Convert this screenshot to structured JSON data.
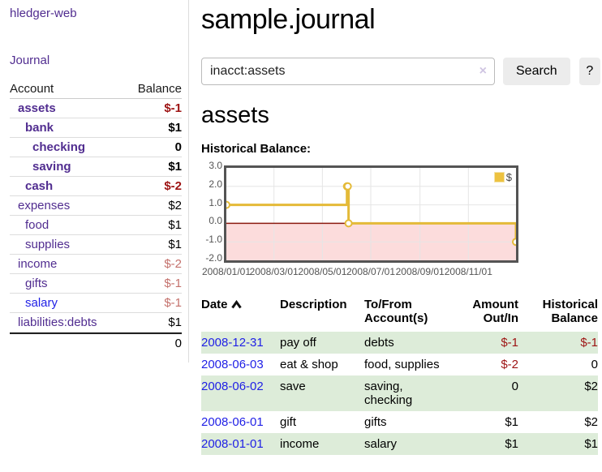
{
  "sidebar": {
    "app_title": "hledger-web",
    "journal_link": "Journal",
    "accounts_header": {
      "account": "Account",
      "balance": "Balance"
    },
    "accounts": [
      {
        "name": "assets",
        "balance": "$-1"
      },
      {
        "name": "bank",
        "balance": "$1"
      },
      {
        "name": "checking",
        "balance": "0"
      },
      {
        "name": "saving",
        "balance": "$1"
      },
      {
        "name": "cash",
        "balance": "$-2"
      },
      {
        "name": "expenses",
        "balance": "$2"
      },
      {
        "name": "food",
        "balance": "$1"
      },
      {
        "name": "supplies",
        "balance": "$1"
      },
      {
        "name": "income",
        "balance": "$-2"
      },
      {
        "name": "gifts",
        "balance": "$-1"
      },
      {
        "name": "salary",
        "balance": "$-1"
      },
      {
        "name": "liabilities:debts",
        "balance": "$1"
      }
    ],
    "accounts_total": "0"
  },
  "header": {
    "title": "sample.journal"
  },
  "search": {
    "value": "inacct:assets",
    "clear_icon": "×",
    "button_label": "Search",
    "help_label": "?"
  },
  "account_page": {
    "title": "assets",
    "chart_label": "Historical Balance:"
  },
  "chart_data": {
    "type": "line",
    "style": "step",
    "title": "Historical Balance",
    "series": [
      {
        "name": "$",
        "color": "#edc240",
        "points": [
          [
            "2008-01-01",
            1
          ],
          [
            "2008-06-01",
            2
          ],
          [
            "2008-06-02",
            2
          ],
          [
            "2008-06-03",
            0
          ],
          [
            "2008-12-31",
            -1
          ]
        ]
      }
    ],
    "xrange": [
      "2008-01-01",
      "2008-12-31"
    ],
    "ylim": [
      -2,
      3
    ],
    "yticks": [
      "3.0",
      "2.0",
      "1.0",
      "0.0",
      "-1.0",
      "-2.0"
    ],
    "xticks": [
      {
        "label": "2008/01/01",
        "date": "2008-01-01"
      },
      {
        "label": "2008/03/01",
        "date": "2008-03-01"
      },
      {
        "label": "2008/05/01",
        "date": "2008-05-01"
      },
      {
        "label": "2008/07/01",
        "date": "2008-07-01"
      },
      {
        "label": "2008/09/01",
        "date": "2008-09-01"
      },
      {
        "label": "2008/11/01",
        "date": "2008-11-01"
      }
    ],
    "grid": true,
    "legend_position": "top-right",
    "negative_region_color": "#fcdcdc",
    "zero_line_color": "#8b1a10",
    "line_color": "#e4ba38",
    "grid_color": "#e5e5e5"
  },
  "register_table": {
    "headers": {
      "date": "Date",
      "description": "Description",
      "to_from": "To/From Account(s)",
      "amount": "Amount Out/In",
      "balance": "Historical Balance"
    },
    "rows": [
      {
        "date": "2008-12-31",
        "description": "pay off",
        "to_from": "debts",
        "amount": "$-1",
        "balance": "$-1"
      },
      {
        "date": "2008-06-03",
        "description": "eat & shop",
        "to_from": "food, supplies",
        "amount": "$-2",
        "balance": "0"
      },
      {
        "date": "2008-06-02",
        "description": "save",
        "to_from": "saving, checking",
        "amount": "0",
        "balance": "$2"
      },
      {
        "date": "2008-06-01",
        "description": "gift",
        "to_from": "gifts",
        "amount": "$1",
        "balance": "$2"
      },
      {
        "date": "2008-01-01",
        "description": "income",
        "to_from": "salary",
        "amount": "$1",
        "balance": "$1"
      }
    ]
  }
}
